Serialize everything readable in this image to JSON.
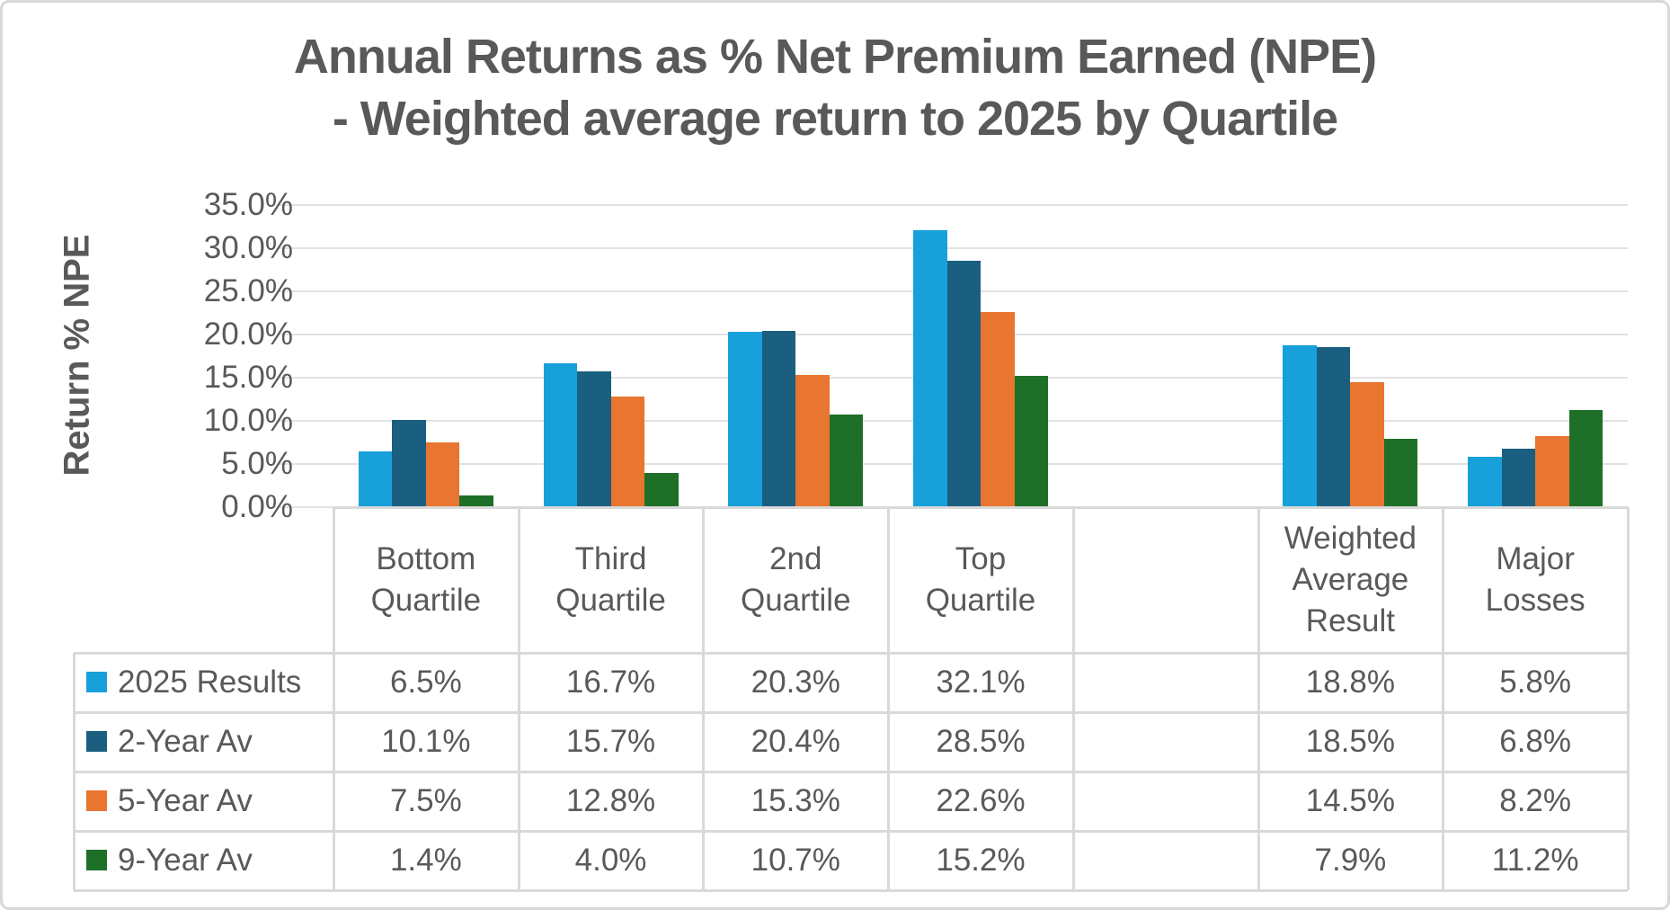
{
  "title": {
    "line1": "Annual Returns as % Net Premium Earned (NPE)",
    "line2": "- Weighted average return to 2025 by Quartile"
  },
  "y_axis": {
    "title": "Return % NPE",
    "tick_labels": [
      "35.0%",
      "30.0%",
      "25.0%",
      "20.0%",
      "15.0%",
      "10.0%",
      "5.0%",
      "0.0%"
    ]
  },
  "chart_data": {
    "type": "bar",
    "title": "Annual Returns as % Net Premium Earned (NPE) - Weighted average return to 2025 by Quartile",
    "xlabel": "",
    "ylabel": "Return % NPE",
    "ylim": [
      0,
      35
    ],
    "y_unit": "%",
    "grid": true,
    "legend_position": "data-table-left",
    "categories": [
      "Bottom Quartile",
      "Third Quartile",
      "2nd Quartile",
      "Top Quartile",
      "",
      "Weighted Average Result",
      "Major Losses"
    ],
    "series": [
      {
        "name": "2025 Results",
        "color": "#18a0db",
        "values": [
          6.5,
          16.7,
          20.3,
          32.1,
          null,
          18.8,
          5.8
        ]
      },
      {
        "name": "2-Year Av",
        "color": "#1a5f80",
        "values": [
          10.1,
          15.7,
          20.4,
          28.5,
          null,
          18.5,
          6.8
        ]
      },
      {
        "name": "5-Year Av",
        "color": "#e87530",
        "values": [
          7.5,
          12.8,
          15.3,
          22.6,
          null,
          14.5,
          8.2
        ]
      },
      {
        "name": "9-Year Av",
        "color": "#1e7028",
        "values": [
          1.4,
          4.0,
          10.7,
          15.2,
          null,
          7.9,
          11.2
        ]
      }
    ]
  },
  "table": {
    "column_headers": [
      "Bottom Quartile",
      "Third Quartile",
      "2nd Quartile",
      "Top Quartile",
      "",
      "Weighted Average Result",
      "Major Losses"
    ],
    "rows": [
      {
        "label": "2025 Results",
        "cells": [
          "6.5%",
          "16.7%",
          "20.3%",
          "32.1%",
          "",
          "18.8%",
          "5.8%"
        ]
      },
      {
        "label": "2-Year Av",
        "cells": [
          "10.1%",
          "15.7%",
          "20.4%",
          "28.5%",
          "",
          "18.5%",
          "6.8%"
        ]
      },
      {
        "label": "5-Year Av",
        "cells": [
          "7.5%",
          "12.8%",
          "15.3%",
          "22.6%",
          "",
          "14.5%",
          "8.2%"
        ]
      },
      {
        "label": "9-Year Av",
        "cells": [
          "1.4%",
          "4.0%",
          "10.7%",
          "15.2%",
          "",
          "7.9%",
          "11.2%"
        ]
      }
    ]
  },
  "colors": {
    "text": "#595959",
    "gridline": "#e2e2e2",
    "table_border": "#d9d9d9",
    "canvas_border": "#d8d8d8",
    "background": "#ffffff"
  }
}
